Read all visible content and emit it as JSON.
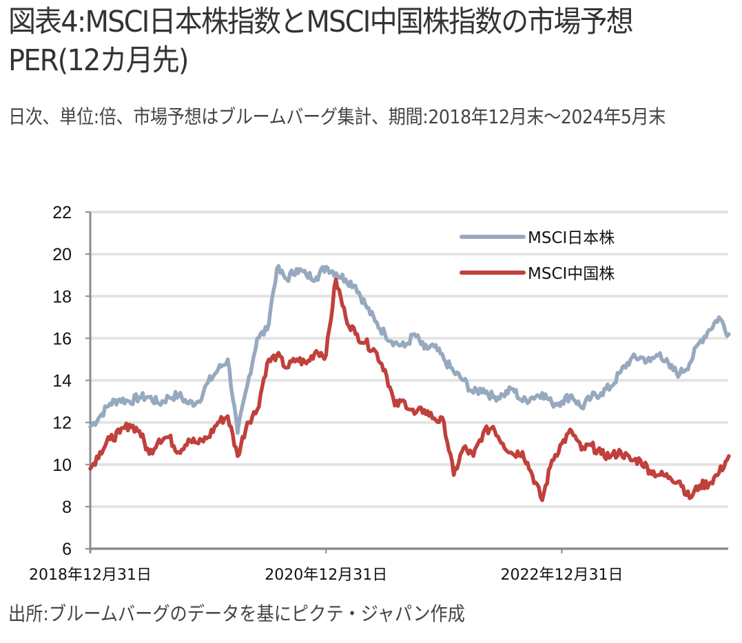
{
  "header": {
    "title": "図表4:MSCI日本株指数とMSCI中国株指数の市場予想PER(12カ月先)",
    "subtitle": "日次、単位:倍、市場予想はブルームバーグ集計、期間:2018年12月末〜2024年5月末"
  },
  "footer": {
    "source": "出所:ブルームバーグのデータを基にピクテ・ジャパン作成"
  },
  "chart_data": {
    "type": "line",
    "title": "図表4:MSCI日本株指数とMSCI中国株指数の市場予想PER(12カ月先)",
    "xlabel": "",
    "ylabel": "倍",
    "ylim": [
      6,
      22
    ],
    "yticks": [
      "6",
      "8",
      "10",
      "12",
      "14",
      "16",
      "18",
      "20",
      "22"
    ],
    "xticks": [
      "2018年12月31日",
      "2020年12月31日",
      "2022年12月31日"
    ],
    "xtick_month_index": [
      0,
      24,
      48
    ],
    "x_unit": "months since 2018-12-31",
    "grid": true,
    "legend_position": "top-right",
    "x": [
      0,
      1,
      2,
      3,
      4,
      5,
      6,
      7,
      8,
      9,
      10,
      11,
      12,
      13,
      14,
      15,
      16,
      17,
      18,
      19,
      20,
      21,
      22,
      23,
      24,
      25,
      26,
      27,
      28,
      29,
      30,
      31,
      32,
      33,
      34,
      35,
      36,
      37,
      38,
      39,
      40,
      41,
      42,
      43,
      44,
      45,
      46,
      47,
      48,
      49,
      50,
      51,
      52,
      53,
      54,
      55,
      56,
      57,
      58,
      59,
      60,
      61,
      62,
      63,
      64,
      65
    ],
    "series": [
      {
        "name": "MSCI日本株",
        "color": "#97a9be",
        "values": [
          11.8,
          12.3,
          12.9,
          13.1,
          13.0,
          13.2,
          13.2,
          12.9,
          13.2,
          13.3,
          12.9,
          13.0,
          13.9,
          14.5,
          15.0,
          11.5,
          13.8,
          16.0,
          16.4,
          19.3,
          18.8,
          19.3,
          19.0,
          18.9,
          19.4,
          19.1,
          18.8,
          18.5,
          17.6,
          16.8,
          16.2,
          15.8,
          15.6,
          16.2,
          15.5,
          15.6,
          15.0,
          14.4,
          14.0,
          13.4,
          13.6,
          13.2,
          13.3,
          13.6,
          13.0,
          13.2,
          13.4,
          12.9,
          13.0,
          13.3,
          12.7,
          13.2,
          13.4,
          13.7,
          14.4,
          15.0,
          15.1,
          14.9,
          15.3,
          14.6,
          14.3,
          14.8,
          15.8,
          16.4,
          17.0,
          16.2
        ]
      },
      {
        "name": "MSCI中国株",
        "color": "#c0403b",
        "values": [
          9.8,
          10.6,
          11.2,
          11.5,
          11.9,
          11.6,
          10.5,
          11.2,
          11.3,
          10.6,
          11.2,
          11.0,
          11.3,
          12.0,
          12.3,
          10.4,
          12.0,
          12.6,
          14.8,
          15.2,
          14.6,
          15.0,
          14.8,
          15.4,
          15.2,
          18.8,
          17.0,
          16.2,
          15.8,
          15.4,
          14.5,
          12.8,
          13.0,
          12.4,
          12.6,
          12.2,
          12.0,
          9.5,
          10.8,
          10.4,
          11.5,
          11.8,
          11.0,
          10.5,
          10.6,
          9.5,
          8.3,
          10.2,
          11.0,
          11.6,
          10.7,
          10.9,
          10.5,
          10.4,
          10.6,
          10.2,
          10.2,
          9.7,
          9.5,
          9.4,
          9.2,
          8.4,
          9.0,
          9.1,
          9.6,
          10.4
        ]
      }
    ]
  }
}
